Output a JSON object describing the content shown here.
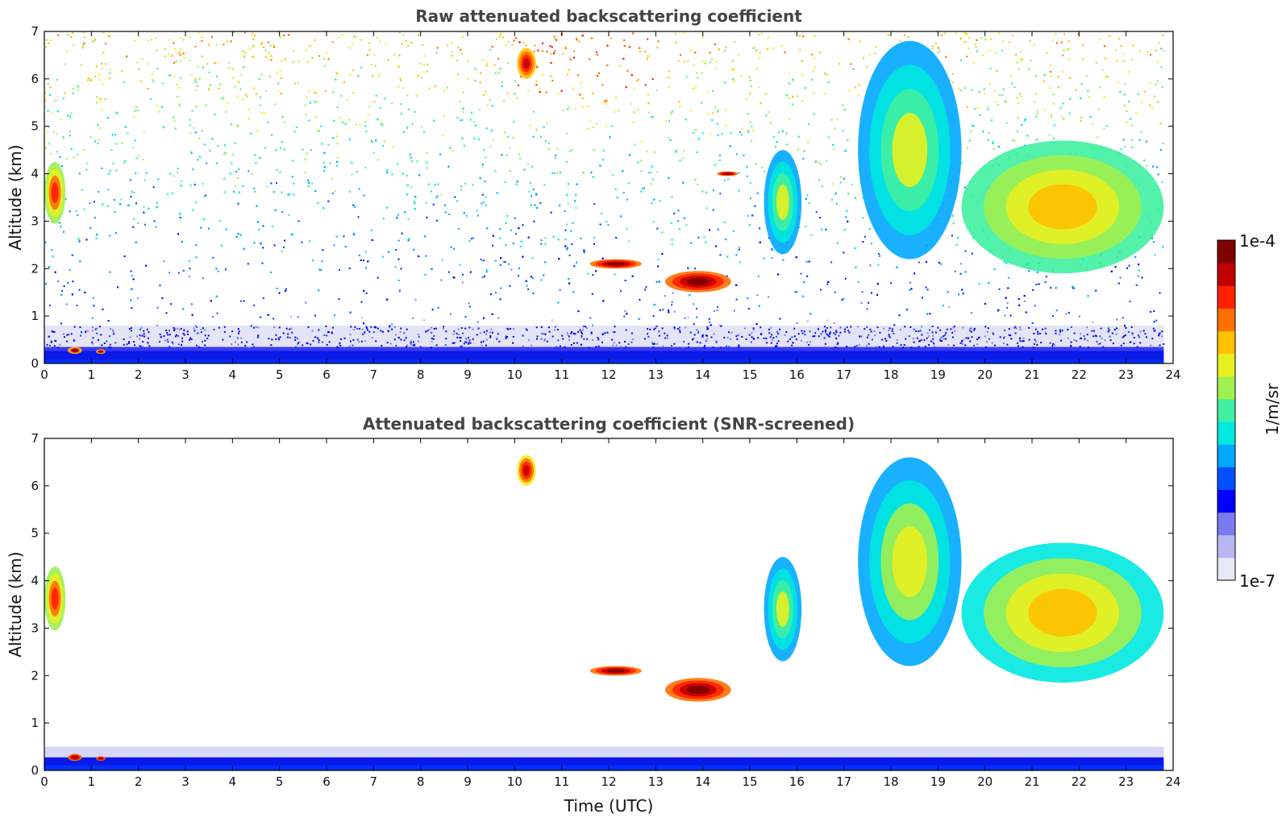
{
  "chart_data": [
    {
      "type": "heatmap",
      "title": "Raw attenuated backscattering coefficient",
      "xlabel": "",
      "ylabel": "Altitude (km)",
      "xlim": [
        0,
        24
      ],
      "ylim": [
        0,
        7
      ],
      "xticks": [
        "0",
        "1",
        "2",
        "3",
        "4",
        "5",
        "6",
        "7",
        "8",
        "9",
        "10",
        "11",
        "12",
        "13",
        "14",
        "15",
        "16",
        "17",
        "18",
        "19",
        "20",
        "21",
        "22",
        "23",
        "24"
      ],
      "yticks": [
        "0",
        "1",
        "2",
        "3",
        "4",
        "5",
        "6",
        "7"
      ],
      "features": [
        {
          "name": "surface layer",
          "x": [
            0,
            23.8
          ],
          "y": [
            0,
            0.35
          ],
          "level": 0.18
        },
        {
          "name": "boundary-layer transition",
          "x": [
            0,
            23.8
          ],
          "y": [
            0.35,
            0.8
          ],
          "level": 0.03
        },
        {
          "name": "noise background",
          "x": [
            0,
            23.8
          ],
          "y": [
            0.8,
            7
          ],
          "level": 0.4
        },
        {
          "name": "low cloud 0.6h",
          "x": [
            0.5,
            0.8
          ],
          "y": [
            0.2,
            0.35
          ],
          "level": 0.95
        },
        {
          "name": "low cloud 1.2h",
          "x": [
            1.1,
            1.3
          ],
          "y": [
            0.2,
            0.3
          ],
          "level": 0.95
        },
        {
          "name": "cloud early",
          "x": [
            0,
            0.45
          ],
          "y": [
            2.95,
            4.25
          ],
          "level": 0.82
        },
        {
          "name": "cloud 10.3h",
          "x": [
            10.05,
            10.45
          ],
          "y": [
            6.0,
            6.65
          ],
          "level": 0.92
        },
        {
          "name": "cloud 12h",
          "x": [
            11.6,
            12.7
          ],
          "y": [
            2.0,
            2.2
          ],
          "level": 1.0
        },
        {
          "name": "cloud 14h",
          "x": [
            13.2,
            14.6
          ],
          "y": [
            1.5,
            1.95
          ],
          "level": 1.0
        },
        {
          "name": "cloud 14.5h",
          "x": [
            14.3,
            14.75
          ],
          "y": [
            3.95,
            4.05
          ],
          "level": 1.0
        },
        {
          "name": "fall streak 15.5h",
          "x": [
            15.3,
            16.1
          ],
          "y": [
            2.3,
            4.5
          ],
          "level": 0.6
        },
        {
          "name": "fall streak 18h",
          "x": [
            17.3,
            19.5
          ],
          "y": [
            2.2,
            6.8
          ],
          "level": 0.6
        },
        {
          "name": "cirrus late",
          "x": [
            19.5,
            23.8
          ],
          "y": [
            1.9,
            4.7
          ],
          "level": 0.72
        }
      ]
    },
    {
      "type": "heatmap",
      "title": "Attenuated backscattering coefficient (SNR-screened)",
      "xlabel": "Time (UTC)",
      "ylabel": "Altitude (km)",
      "xlim": [
        0,
        24
      ],
      "ylim": [
        0,
        7
      ],
      "xticks": [
        "0",
        "1",
        "2",
        "3",
        "4",
        "5",
        "6",
        "7",
        "8",
        "9",
        "10",
        "11",
        "12",
        "13",
        "14",
        "15",
        "16",
        "17",
        "18",
        "19",
        "20",
        "21",
        "22",
        "23",
        "24"
      ],
      "yticks": [
        "0",
        "1",
        "2",
        "3",
        "4",
        "5",
        "6",
        "7"
      ],
      "features": [
        {
          "name": "surface layer",
          "x": [
            0,
            23.8
          ],
          "y": [
            0,
            0.5
          ],
          "level": 0.15
        },
        {
          "name": "low cloud 0.6h",
          "x": [
            0.5,
            0.8
          ],
          "y": [
            0.2,
            0.35
          ],
          "level": 1.0
        },
        {
          "name": "low cloud 1.2h",
          "x": [
            1.1,
            1.3
          ],
          "y": [
            0.2,
            0.3
          ],
          "level": 1.0
        },
        {
          "name": "cloud early",
          "x": [
            0,
            0.45
          ],
          "y": [
            2.95,
            4.3
          ],
          "level": 0.82
        },
        {
          "name": "cloud 10.3h",
          "x": [
            10.05,
            10.45
          ],
          "y": [
            6.0,
            6.65
          ],
          "level": 0.9
        },
        {
          "name": "cloud 12h",
          "x": [
            11.6,
            12.7
          ],
          "y": [
            2.0,
            2.2
          ],
          "level": 1.0
        },
        {
          "name": "cloud 14h",
          "x": [
            13.2,
            14.6
          ],
          "y": [
            1.45,
            1.95
          ],
          "level": 1.0
        },
        {
          "name": "fall streak 15.5h",
          "x": [
            15.3,
            16.1
          ],
          "y": [
            2.3,
            4.5
          ],
          "level": 0.6
        },
        {
          "name": "fall streak 18h",
          "x": [
            17.3,
            19.5
          ],
          "y": [
            2.2,
            6.6
          ],
          "level": 0.62
        },
        {
          "name": "cirrus late",
          "x": [
            19.5,
            23.8
          ],
          "y": [
            1.85,
            4.8
          ],
          "level": 0.7
        }
      ]
    }
  ],
  "colorbar": {
    "label": "1/m/sr",
    "max_label": "1e-4",
    "min_label": "1e-7",
    "colormap": [
      "#e8e8f8",
      "#b8b8f0",
      "#7a7af0",
      "#0000ff",
      "#0050ff",
      "#00a8ff",
      "#00e8e0",
      "#40f0a0",
      "#a0f050",
      "#e8f020",
      "#ffc000",
      "#ff7000",
      "#ff2000",
      "#c00000",
      "#800000"
    ]
  }
}
